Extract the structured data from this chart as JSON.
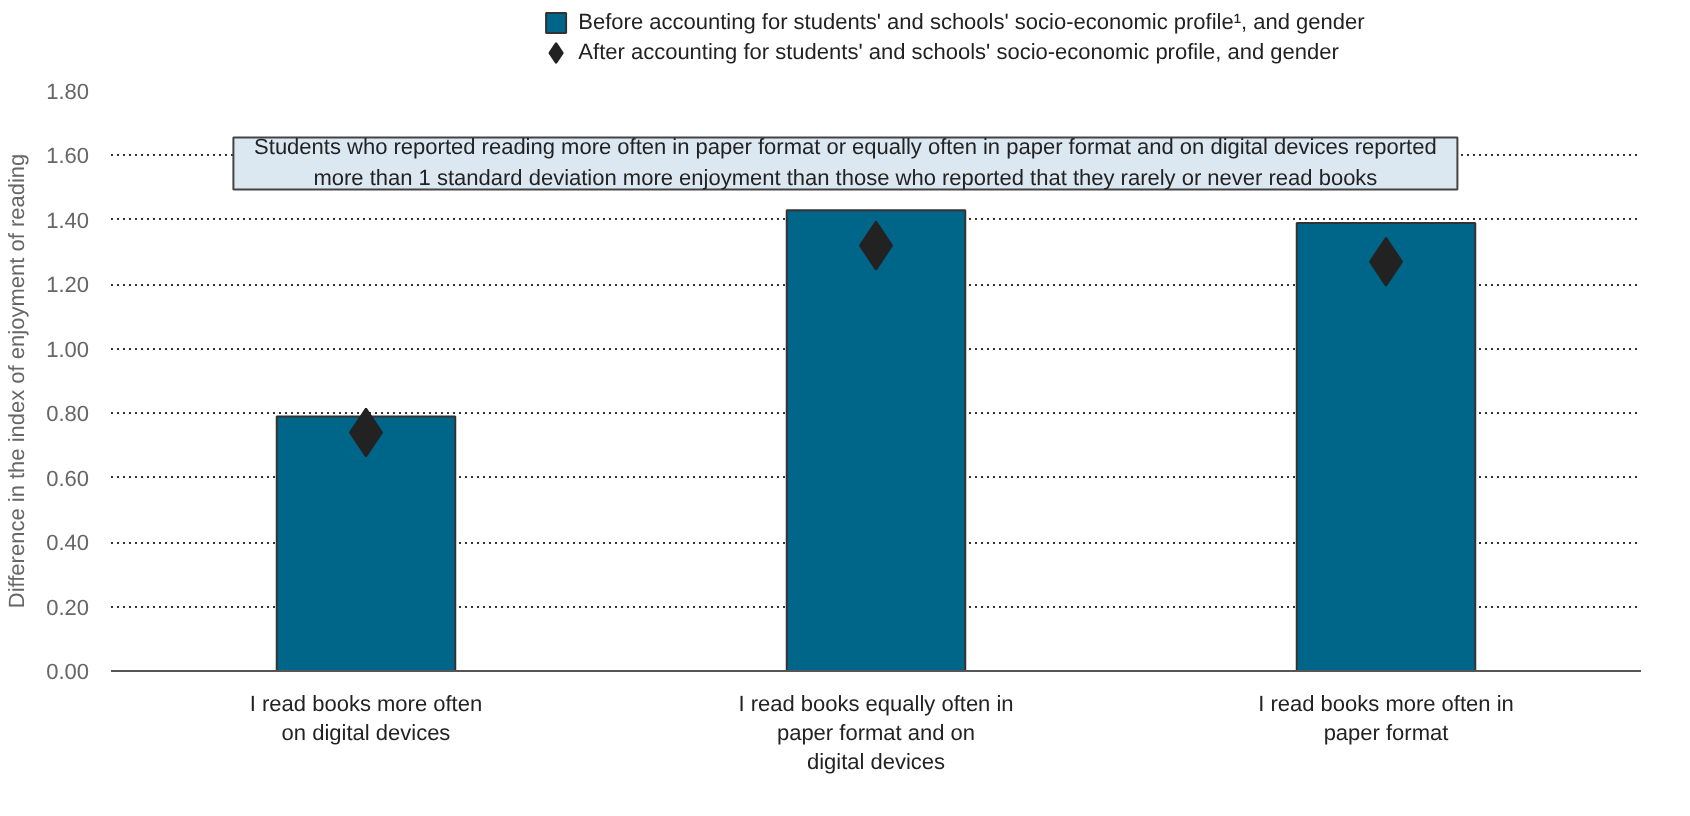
{
  "chart_data": {
    "type": "bar",
    "categories": [
      "I read books more often\non digital devices",
      "I read books equally often in\npaper format and on\ndigital devices",
      "I read books more often in\npaper format"
    ],
    "ylabel": "Difference in the index of enjoyment of reading",
    "series": [
      {
        "name": "Before accounting for students' and schools' socio-economic profile¹, and gender",
        "color": "#006689",
        "values": [
          0.79,
          1.43,
          1.39
        ]
      },
      {
        "name": "After accounting for students' and schools' socio-economic profile, and gender",
        "type": "scatter",
        "marker": "diamond",
        "color": "#222222",
        "x": [
          "I read books more often\non digital devices",
          "I read books equally often in\npaper format and on\ndigital devices",
          "I read books more often in\npaper format"
        ],
        "values": [
          0.74,
          1.32,
          1.27
        ]
      }
    ],
    "ylim": [
      0,
      1.8
    ],
    "yticks": [
      {
        "value": 0,
        "label": "0.00"
      },
      {
        "value": 0.2,
        "label": "0.20"
      },
      {
        "value": 0.4,
        "label": "0.40"
      },
      {
        "value": 0.6,
        "label": "0.60"
      },
      {
        "value": 0.8,
        "label": "0.80"
      },
      {
        "value": 1.0,
        "label": "1.00"
      },
      {
        "value": 1.2,
        "label": "1.20"
      },
      {
        "value": 1.4,
        "label": "1.40"
      },
      {
        "value": 1.6,
        "label": "1.60"
      },
      {
        "value": 1.8,
        "label": "1.80"
      }
    ],
    "grid": "y",
    "legend": "top",
    "annotations": [
      "Students who reported reading more often in paper format or equally often in paper format and on digital devices reported\nmore than 1 standard deviation more enjoyment than those who reported that they rarely or never read books"
    ]
  }
}
